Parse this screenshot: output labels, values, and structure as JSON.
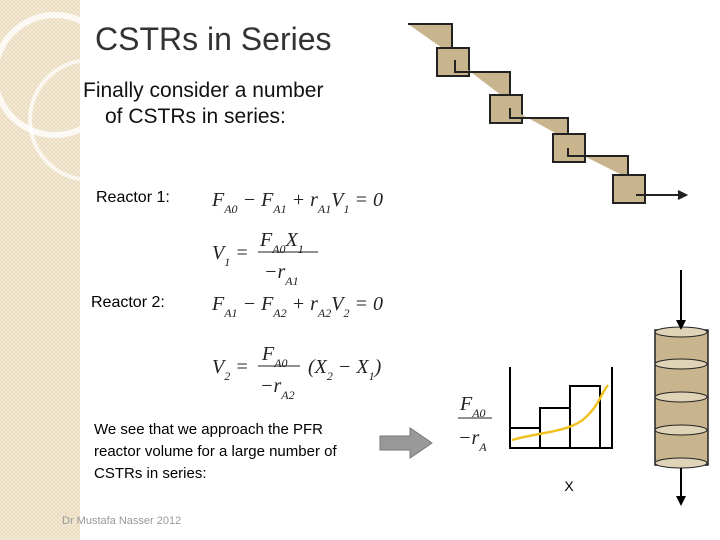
{
  "title": "CSTRs in Series",
  "intro": [
    "Finally consider a number",
    "of CSTRs in series:"
  ],
  "reactor1": {
    "label": "Reactor 1:",
    "balance": [
      {
        "t": "F",
        "s": "A0"
      },
      {
        "t": " − "
      },
      {
        "t": "F",
        "s": "A1"
      },
      {
        "t": " + r",
        "s": "A1"
      },
      {
        "t": "V",
        "s": "1"
      },
      {
        "t": " = 0"
      }
    ],
    "volume": {
      "lhs": [
        {
          "t": "V",
          "s": "1"
        },
        {
          "t": " ="
        }
      ],
      "num": [
        {
          "t": "F",
          "s": "A0"
        },
        {
          "t": "X",
          "s": "1"
        }
      ],
      "den": [
        {
          "t": "−r",
          "s": "A1"
        }
      ]
    }
  },
  "reactor2": {
    "label": "Reactor 2:",
    "balance": [
      {
        "t": "F",
        "s": "A1"
      },
      {
        "t": " − "
      },
      {
        "t": "F",
        "s": "A2"
      },
      {
        "t": " + r",
        "s": "A2"
      },
      {
        "t": "V",
        "s": "2"
      },
      {
        "t": " = 0"
      }
    ],
    "volume": {
      "lhs": [
        {
          "t": "V",
          "s": "2"
        },
        {
          "t": " ="
        }
      ],
      "num": [
        {
          "t": "F",
          "s": "A0"
        }
      ],
      "den": [
        {
          "t": "−r",
          "s": "A2"
        }
      ],
      "rhs": [
        {
          "t": "(X",
          "s": "2"
        },
        {
          "t": " − X",
          "s": "1"
        },
        {
          "t": ")"
        }
      ]
    }
  },
  "conclusion": [
    "We see that we approach the PFR",
    "reactor volume for a large number of",
    "CSTRs in series:"
  ],
  "plot": {
    "y_label": {
      "num": [
        {
          "t": "F",
          "s": "A0"
        }
      ],
      "den": [
        {
          "t": "−r",
          "s": "A"
        }
      ]
    },
    "x_label": "X"
  },
  "footer": "Dr Mustafa Nasser 2012"
}
